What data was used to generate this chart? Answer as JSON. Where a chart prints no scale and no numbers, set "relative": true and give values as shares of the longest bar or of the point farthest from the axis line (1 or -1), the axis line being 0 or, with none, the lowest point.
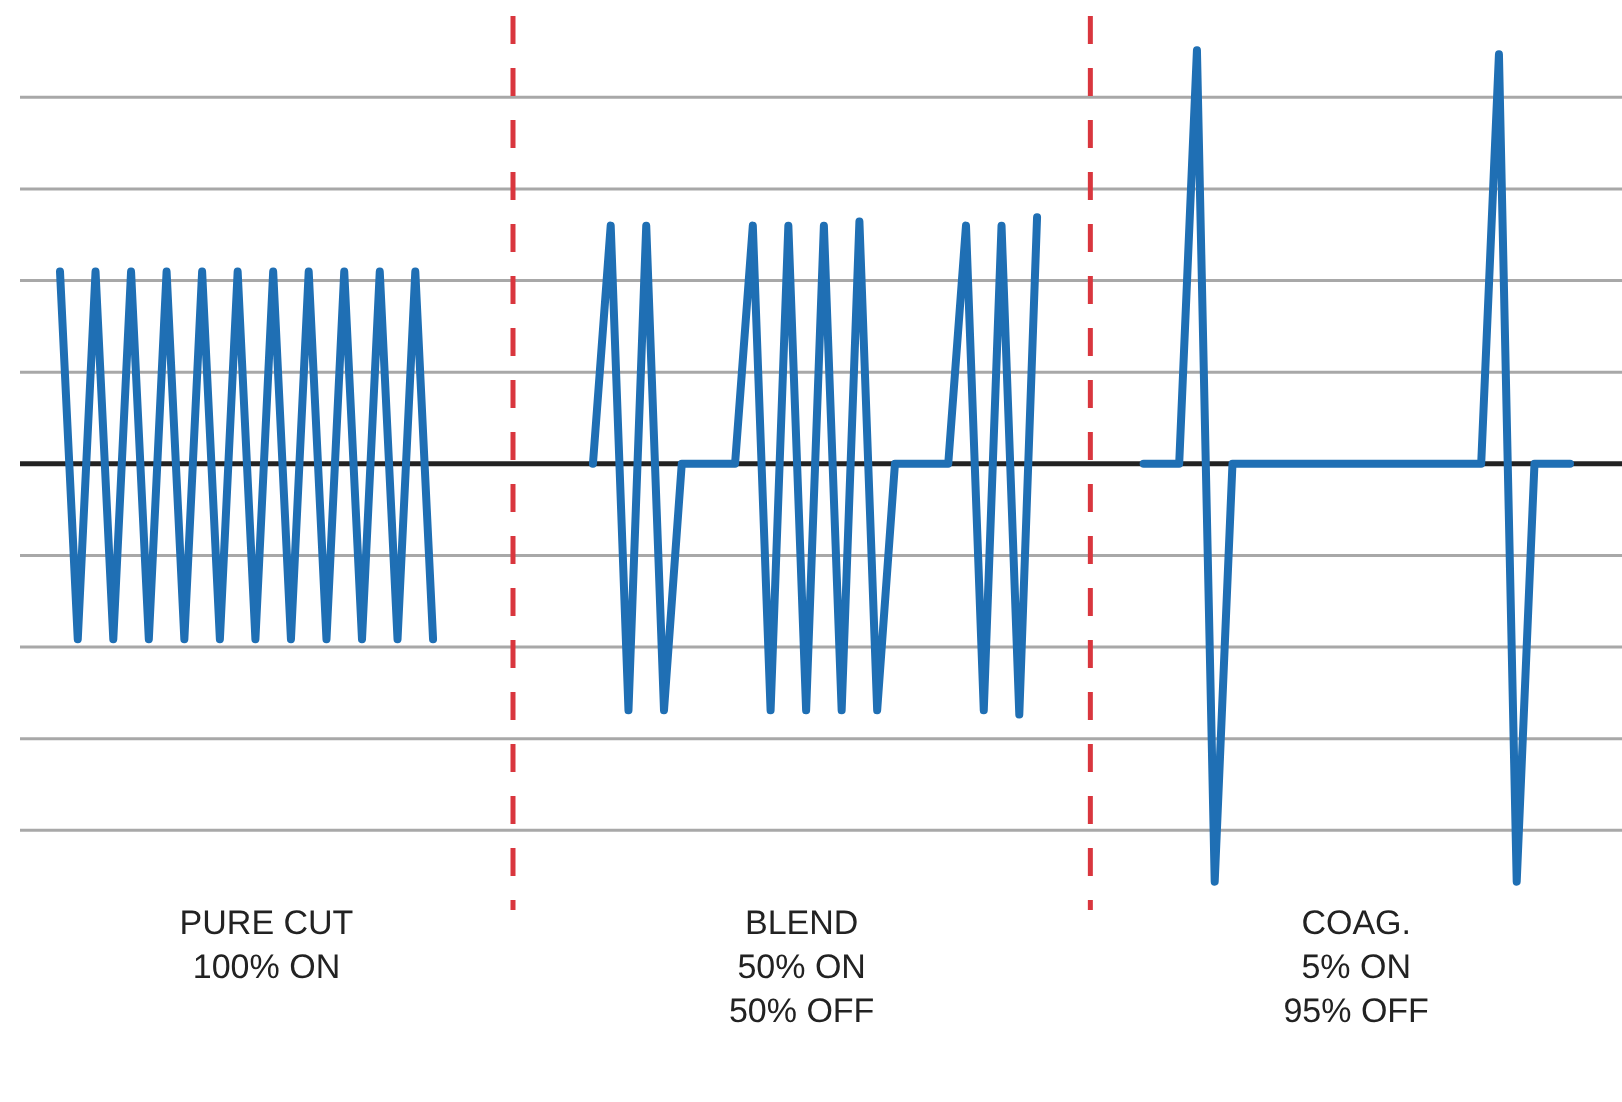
{
  "chart_data": {
    "type": "line",
    "relative": true,
    "grid": "y",
    "marker": "none",
    "line_style": "solid",
    "categories": [
      null,
      null,
      null,
      null,
      null,
      null,
      null,
      null,
      null,
      null,
      null,
      null,
      null,
      null,
      null,
      null,
      null,
      null,
      null,
      null,
      null,
      null,
      null,
      null,
      null,
      null,
      null,
      null,
      null,
      null,
      null,
      null,
      null,
      null,
      null,
      null,
      null,
      null,
      null,
      null,
      null,
      null,
      null,
      null,
      null,
      null,
      null,
      null,
      null,
      null,
      null,
      null,
      null,
      null,
      null,
      null,
      null,
      null,
      null,
      null,
      null,
      null,
      null,
      null,
      null,
      null,
      null,
      null,
      null,
      null,
      null,
      null,
      null,
      null,
      null,
      null,
      null,
      null,
      null,
      null,
      null,
      null,
      null,
      null,
      null,
      null
    ],
    "series": [
      {
        "color": "#1f6fb4",
        "values": [
          0.46,
          -0.42,
          0.46,
          -0.42,
          0.46,
          -0.42,
          0.46,
          -0.42,
          0.46,
          -0.42,
          0.46,
          -0.42,
          0.46,
          -0.42,
          0.46,
          -0.42,
          0.46,
          -0.42,
          0.46,
          -0.42,
          0.46,
          -0.42,
          null,
          null,
          null,
          null,
          null,
          null,
          null,
          null,
          null,
          null,
          null,
          null,
          null,
          null,
          null,
          null,
          null,
          null,
          null,
          null,
          null,
          null,
          null,
          null,
          null,
          null,
          null,
          null,
          null,
          null,
          null,
          null,
          null,
          null,
          null,
          null,
          null,
          null,
          null,
          null,
          null,
          null,
          null,
          null,
          null,
          null,
          null,
          null,
          null,
          null,
          null,
          null,
          null,
          null,
          null,
          null,
          null,
          null,
          null,
          null,
          null,
          null,
          null,
          null
        ]
      },
      {
        "color": "#1f6fb4",
        "values": [
          null,
          null,
          null,
          null,
          null,
          null,
          null,
          null,
          null,
          null,
          null,
          null,
          null,
          null,
          null,
          null,
          null,
          null,
          null,
          null,
          null,
          null,
          null,
          null,
          null,
          null,
          null,
          null,
          null,
          null,
          0,
          0.57,
          -0.59,
          0.57,
          -0.59,
          0,
          0,
          0,
          0,
          0.57,
          -0.59,
          0.57,
          -0.59,
          0.57,
          -0.59,
          0.58,
          -0.59,
          0,
          0,
          0,
          0,
          0.57,
          -0.59,
          0.57,
          -0.6,
          0.59,
          null,
          null,
          null,
          null,
          null,
          null,
          null,
          null,
          null,
          null,
          null,
          null,
          null,
          null,
          null,
          null,
          null,
          null,
          null,
          null,
          null,
          null,
          null,
          null,
          null,
          null,
          null,
          null,
          null,
          null
        ]
      },
      {
        "color": "#1f6fb4",
        "values": [
          null,
          null,
          null,
          null,
          null,
          null,
          null,
          null,
          null,
          null,
          null,
          null,
          null,
          null,
          null,
          null,
          null,
          null,
          null,
          null,
          null,
          null,
          null,
          null,
          null,
          null,
          null,
          null,
          null,
          null,
          null,
          null,
          null,
          null,
          null,
          null,
          null,
          null,
          null,
          null,
          null,
          null,
          null,
          null,
          null,
          null,
          null,
          null,
          null,
          null,
          null,
          null,
          null,
          null,
          null,
          null,
          null,
          null,
          null,
          null,
          null,
          0,
          0,
          0,
          0.99,
          -1,
          0,
          0,
          0,
          0,
          0,
          0,
          0,
          0,
          0,
          0,
          0,
          0,
          0,
          0,
          0,
          0.98,
          -1,
          0,
          0,
          0
        ]
      }
    ],
    "annotations": [
      "PURE CUT\n\n100% ON",
      "BLEND\n\n50% ON\n50% OFF",
      "COAG.\n\n5% ON\n95% OFF"
    ]
  }
}
